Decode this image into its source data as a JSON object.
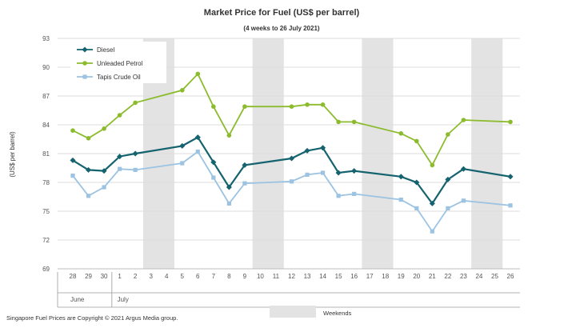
{
  "chart_data": {
    "type": "line",
    "title": "Market Price for Fuel  (US$  per barrel)",
    "subtitle": "(4 weeks to 26 July 2021)",
    "ylabel": "(US$ per barrel)",
    "ylim": [
      69,
      93
    ],
    "yticks": [
      "69",
      "72",
      "75",
      "78",
      "81",
      "84",
      "87",
      "90",
      "93"
    ],
    "categories": [
      "28",
      "29",
      "30",
      "1",
      "2",
      "3",
      "4",
      "5",
      "6",
      "7",
      "8",
      "9",
      "10",
      "11",
      "12",
      "13",
      "14",
      "15",
      "16",
      "17",
      "18",
      "19",
      "20",
      "21",
      "22",
      "23",
      "24",
      "25",
      "26"
    ],
    "month_labels": [
      {
        "label": "June",
        "start": 0,
        "end": 2
      },
      {
        "label": "July",
        "start": 3,
        "end": 28
      }
    ],
    "weekend_ranges": [
      [
        5,
        6
      ],
      [
        12,
        13
      ],
      [
        19,
        20
      ],
      [
        26,
        27
      ]
    ],
    "weekend_label": "Weekends",
    "footer": "Singapore  Fuel Prices are Copyright © 2021 Argus Media group.",
    "series": [
      {
        "name": "Diesel",
        "color": "#15636f",
        "marker": "diamond",
        "values": [
          80.3,
          79.3,
          79.2,
          80.7,
          81.0,
          null,
          null,
          81.8,
          82.7,
          80.1,
          77.5,
          79.8,
          null,
          null,
          80.5,
          81.3,
          81.6,
          79.0,
          79.2,
          null,
          null,
          78.6,
          78.0,
          75.8,
          78.3,
          79.4,
          null,
          null,
          78.6
        ]
      },
      {
        "name": "Unleaded Petrol",
        "color": "#8cbc2e",
        "marker": "circle",
        "values": [
          83.4,
          82.6,
          83.6,
          85.0,
          86.3,
          null,
          null,
          87.6,
          89.3,
          85.9,
          82.9,
          85.9,
          null,
          null,
          85.9,
          86.1,
          86.1,
          84.3,
          84.3,
          null,
          null,
          83.1,
          82.3,
          79.8,
          83.0,
          84.5,
          null,
          null,
          84.3
        ]
      },
      {
        "name": "Tapis Crude Oil",
        "color": "#9cc3e2",
        "marker": "square",
        "values": [
          78.7,
          76.6,
          77.5,
          79.4,
          79.3,
          null,
          null,
          80.0,
          81.2,
          78.5,
          75.8,
          77.9,
          null,
          null,
          78.1,
          78.8,
          79.0,
          76.6,
          76.8,
          null,
          null,
          76.2,
          75.3,
          72.9,
          75.3,
          76.1,
          null,
          null,
          75.6
        ]
      }
    ]
  }
}
